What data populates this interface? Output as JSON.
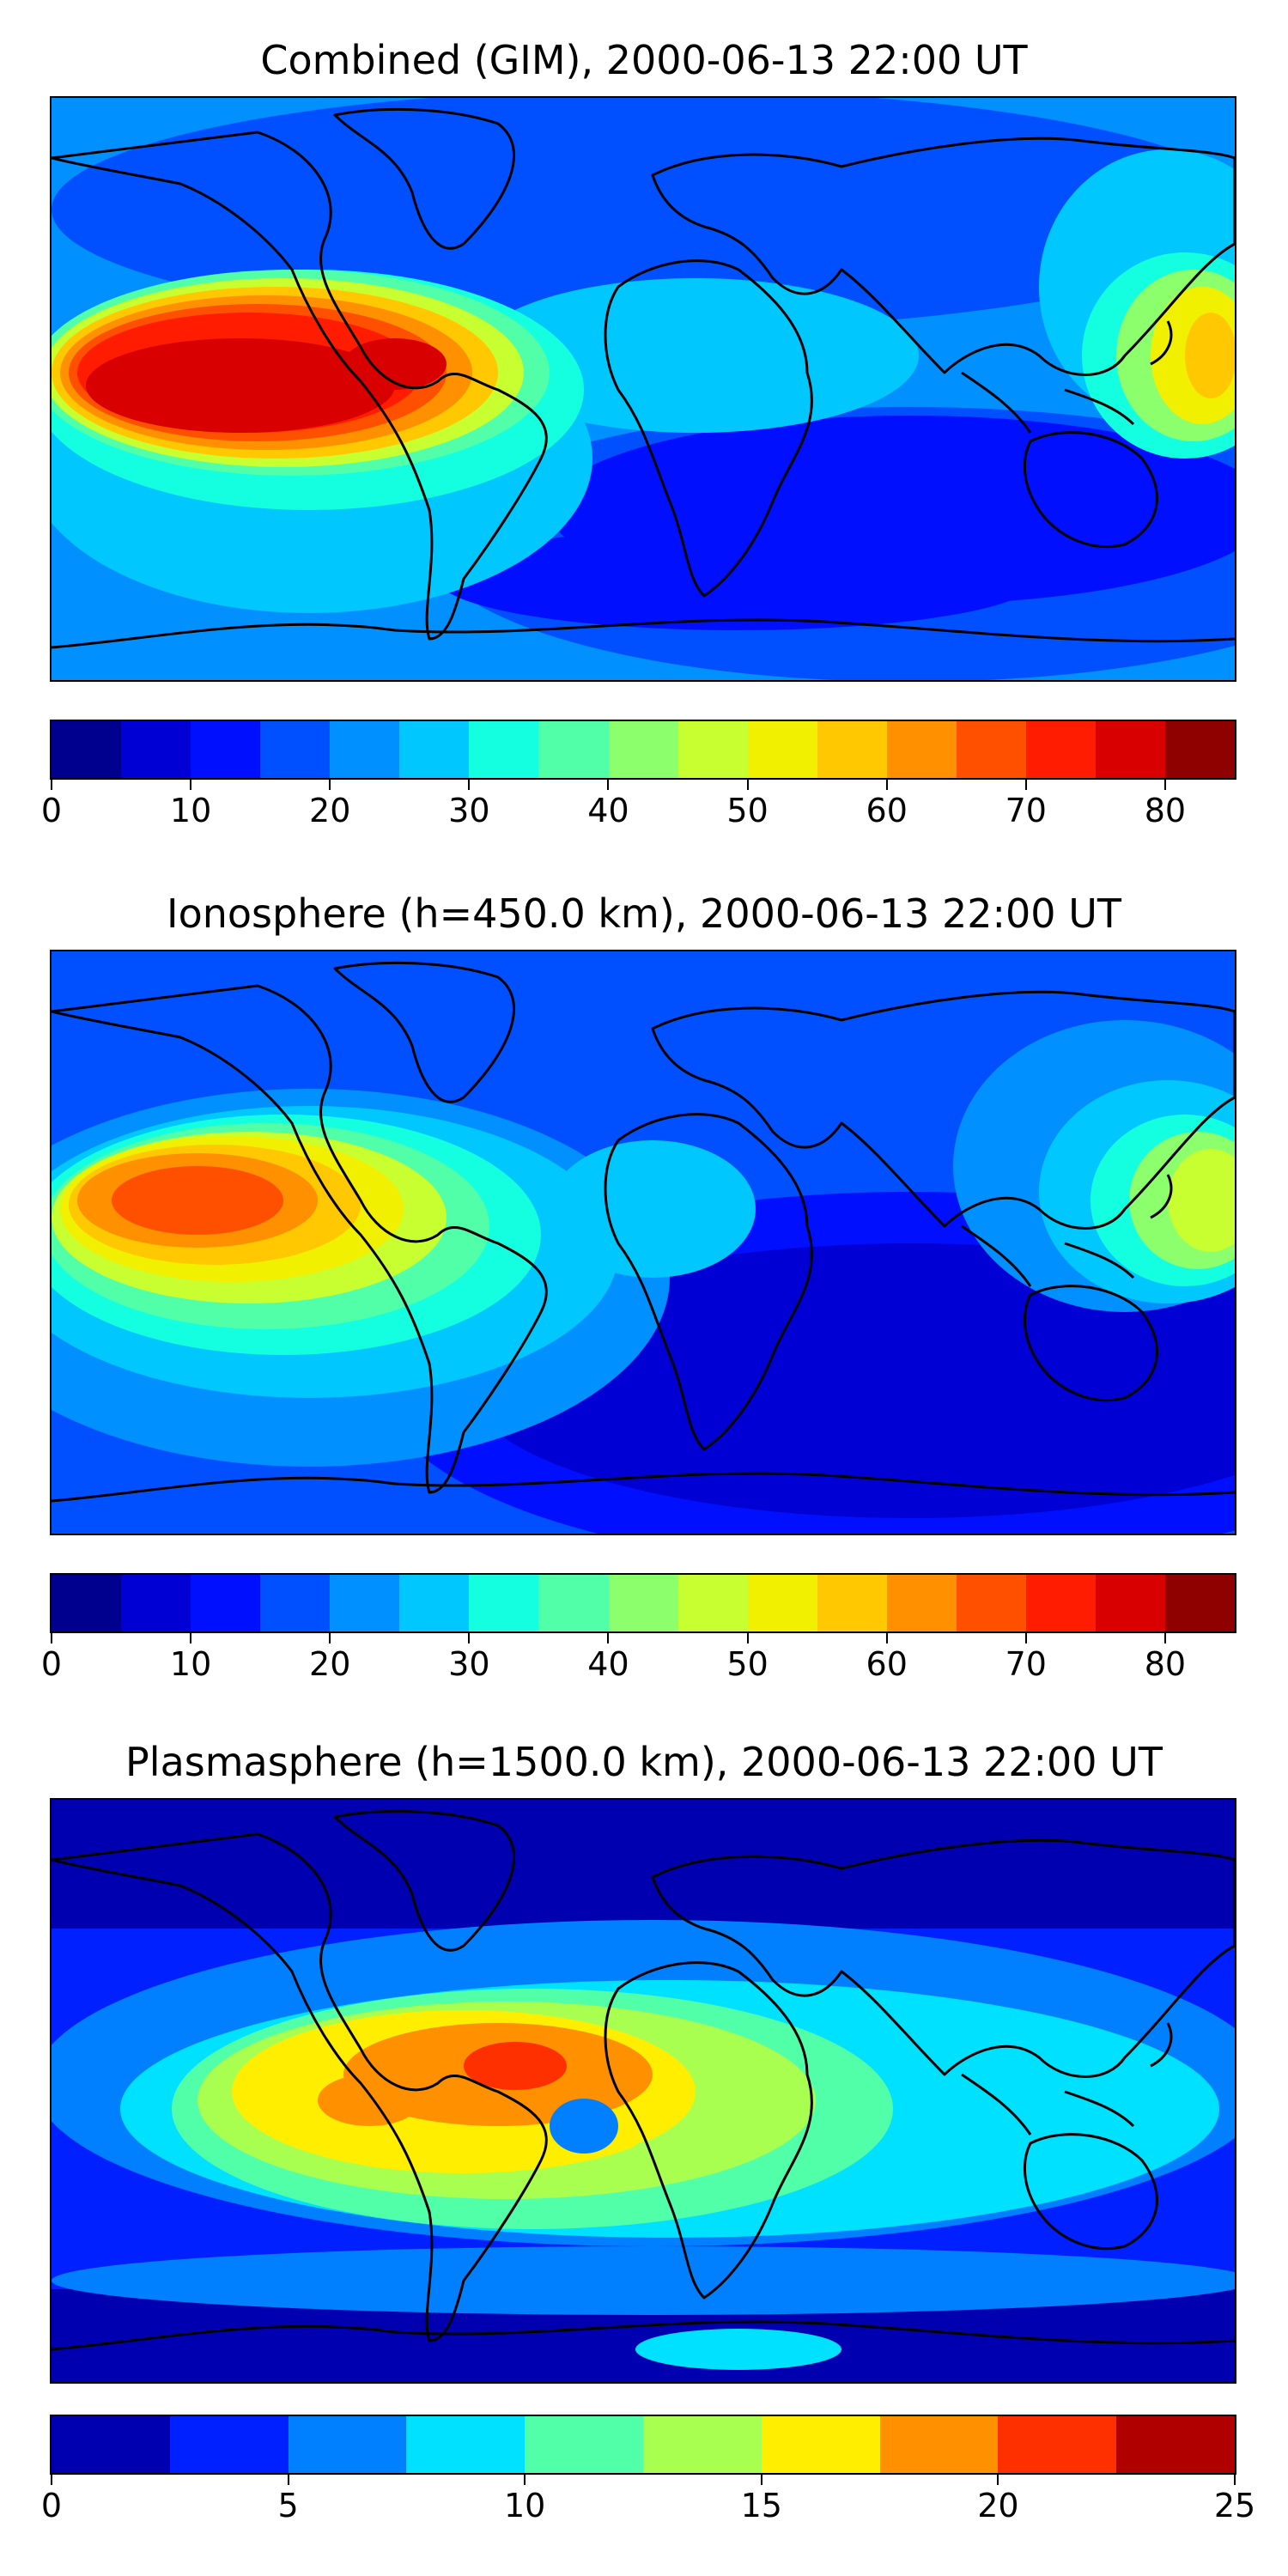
{
  "figure": {
    "panels": [
      {
        "id": "combined",
        "title": "Combined (GIM), 2000-06-13 22:00 UT",
        "colorbar": {
          "min": 0,
          "max": 85,
          "step": 5,
          "ticks": [
            "0",
            "10",
            "20",
            "30",
            "40",
            "50",
            "60",
            "70",
            "80"
          ],
          "tick_values": [
            0,
            10,
            20,
            30,
            40,
            50,
            60,
            70,
            80
          ]
        }
      },
      {
        "id": "ionosphere",
        "title": "Ionosphere  (h=450.0 km), 2000-06-13 22:00 UT",
        "colorbar": {
          "min": 0,
          "max": 85,
          "step": 5,
          "ticks": [
            "0",
            "10",
            "20",
            "30",
            "40",
            "50",
            "60",
            "70",
            "80"
          ],
          "tick_values": [
            0,
            10,
            20,
            30,
            40,
            50,
            60,
            70,
            80
          ]
        }
      },
      {
        "id": "plasmasphere",
        "title": "Plasmasphere (h=1500.0 km), 2000-06-13 22:00 UT",
        "colorbar": {
          "min": 0,
          "max": 25,
          "step": 2.5,
          "ticks": [
            "0",
            "5",
            "10",
            "15",
            "20",
            "25"
          ],
          "tick_values": [
            0,
            5,
            10,
            15,
            20,
            25
          ]
        }
      }
    ]
  },
  "colors": {
    "jet17": [
      "#00008f",
      "#0000d4",
      "#0010ff",
      "#0050ff",
      "#0090ff",
      "#00c8ff",
      "#14ffe0",
      "#50ffa8",
      "#8cff6c",
      "#c8ff30",
      "#f0f000",
      "#ffc800",
      "#ff9000",
      "#ff5000",
      "#ff1c00",
      "#d80000",
      "#8f0000"
    ],
    "jet10": [
      "#0000b0",
      "#0020ff",
      "#0080ff",
      "#00e0ff",
      "#50ffa8",
      "#a8ff50",
      "#ffee00",
      "#ff9000",
      "#ff3000",
      "#b00000"
    ],
    "coastline": "#000000"
  }
}
